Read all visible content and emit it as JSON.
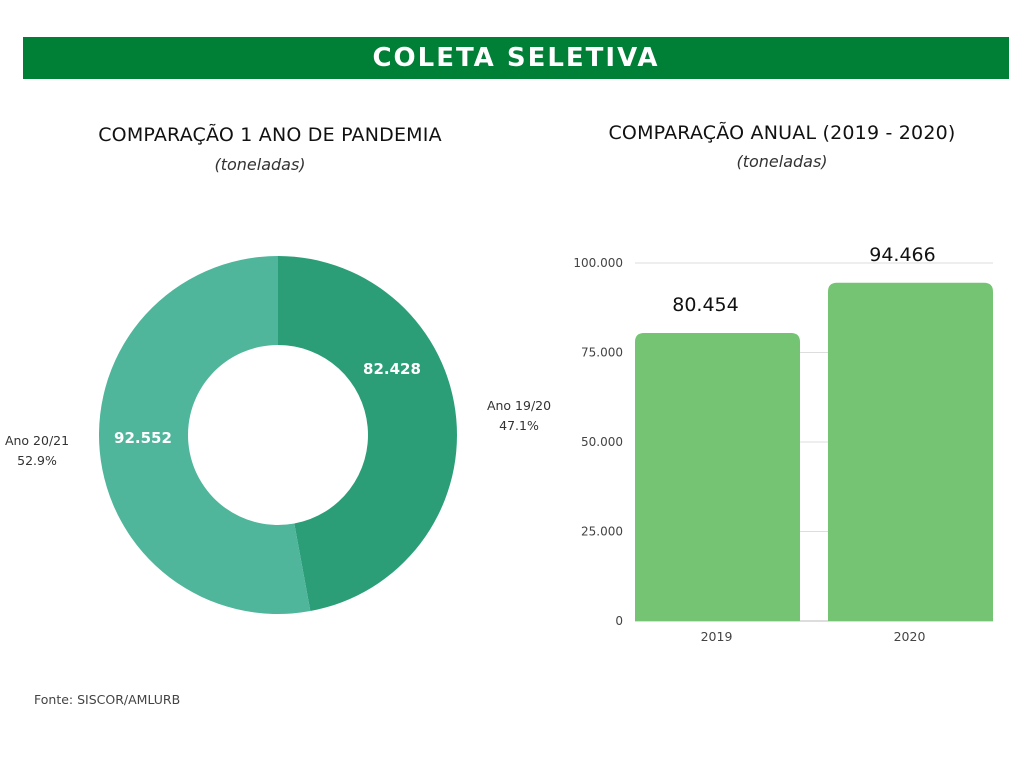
{
  "header": {
    "title": "COLETA SELETIVA",
    "background_color": "#007f37"
  },
  "left_chart": {
    "title": "COMPARAÇÃO 1 ANO DE PANDEMIA",
    "subtitle": "(toneladas)"
  },
  "right_chart": {
    "title": "COMPARAÇÃO ANUAL (2019 - 2020)",
    "subtitle": "(toneladas)"
  },
  "footer": {
    "source": "Fonte: SISCOR/AMLURB"
  },
  "chart_data": [
    {
      "type": "pie",
      "variant": "donut",
      "title": "COMPARAÇÃO 1 ANO DE PANDEMIA",
      "subtitle": "(toneladas)",
      "categories": [
        "Ano 19/20",
        "Ano 20/21"
      ],
      "values": [
        82428,
        92552
      ],
      "value_labels": [
        "82.428",
        "92.552"
      ],
      "percent_labels": [
        "47.1%",
        "52.9%"
      ],
      "colors": [
        "#2b9e78",
        "#4fb59b"
      ],
      "legend": "outside labels (category + percent)",
      "start_angle": "12 o'clock, clockwise"
    },
    {
      "type": "bar",
      "title": "COMPARAÇÃO ANUAL (2019 - 2020)",
      "subtitle": "(toneladas)",
      "categories": [
        "2019",
        "2020"
      ],
      "values": [
        80454,
        94466
      ],
      "value_labels": [
        "80.454",
        "94.466"
      ],
      "xlabel": "",
      "ylabel": "",
      "ylim": [
        0,
        100000
      ],
      "yticks": [
        0,
        25000,
        50000,
        75000,
        100000
      ],
      "ytick_labels": [
        "0",
        "25.000",
        "50.000",
        "75.000",
        "100.000"
      ],
      "grid": true,
      "bar_color": "#75c473"
    }
  ]
}
